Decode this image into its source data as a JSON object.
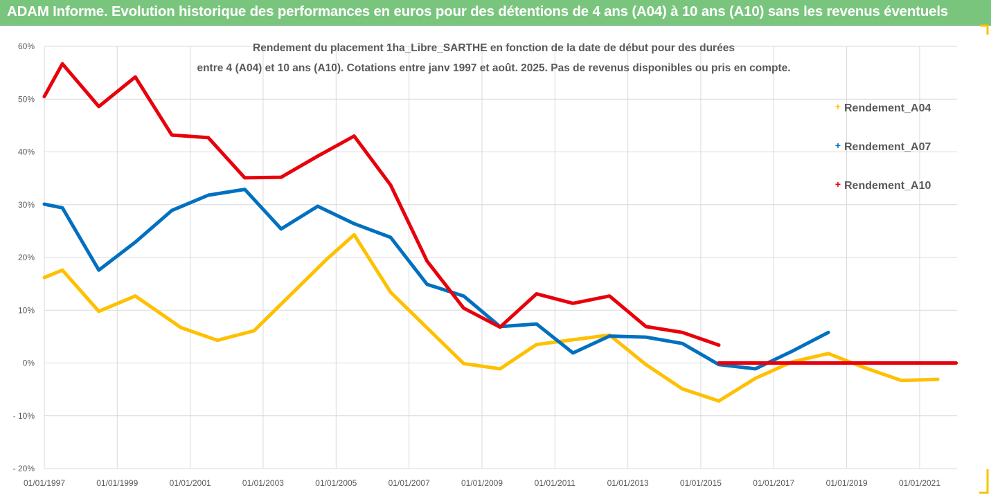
{
  "header": {
    "title": "ADAM Informe. Evolution historique des performances en euros pour des détentions de 4 ans (A04) à 10 ans (A10) sans les revenus éventuels"
  },
  "colors": {
    "header_bg": "#79c57d",
    "accent": "#f5c400"
  },
  "chart_data": {
    "type": "line",
    "title_lines": [
      "Rendement du placement 1ha_Libre_SARTHE en fonction de la date de début pour des durées",
      "entre 4 (A04) et 10 ans (A10). Cotations entre janv 1997 et août. 2025. Pas de revenus disponibles ou pris en compte."
    ],
    "xlabel": "",
    "ylabel": "",
    "x_axis": {
      "type": "date",
      "min": "1997-01-01",
      "max": "2022-01-01",
      "ticks": [
        "01/01/1997",
        "01/01/1999",
        "01/01/2001",
        "01/01/2003",
        "01/01/2005",
        "01/01/2007",
        "01/01/2009",
        "01/01/2011",
        "01/01/2013",
        "01/01/2015",
        "01/01/2017",
        "01/01/2019",
        "01/01/2021"
      ]
    },
    "y_axis": {
      "min": -0.2,
      "max": 0.6,
      "ticks": [
        {
          "value": 0.6,
          "label": "60%"
        },
        {
          "value": 0.5,
          "label": "50%"
        },
        {
          "value": 0.4,
          "label": "40%"
        },
        {
          "value": 0.3,
          "label": "30%"
        },
        {
          "value": 0.2,
          "label": "20%"
        },
        {
          "value": 0.1,
          "label": "10%"
        },
        {
          "value": 0.0,
          "label": "0%"
        },
        {
          "value": -0.1,
          "label": "- 10%"
        },
        {
          "value": -0.2,
          "label": "- 20%"
        }
      ]
    },
    "grid": true,
    "legend_position": "right",
    "series": [
      {
        "name": "Rendement_A04",
        "color": "#ffc000",
        "points": [
          [
            "1997-01-01",
            0.162
          ],
          [
            "1997-07-01",
            0.176
          ],
          [
            "1998-07-01",
            0.098
          ],
          [
            "1999-07-01",
            0.127
          ],
          [
            "2000-10-01",
            0.067
          ],
          [
            "2001-10-01",
            0.043
          ],
          [
            "2002-10-01",
            0.061
          ],
          [
            "2004-10-01",
            0.197
          ],
          [
            "2005-07-01",
            0.243
          ],
          [
            "2006-07-01",
            0.134
          ],
          [
            "2008-07-01",
            -0.001
          ],
          [
            "2009-07-01",
            -0.011
          ],
          [
            "2010-07-01",
            0.035
          ],
          [
            "2011-07-01",
            0.044
          ],
          [
            "2012-07-01",
            0.053
          ],
          [
            "2013-07-01",
            -0.003
          ],
          [
            "2014-07-01",
            -0.049
          ],
          [
            "2015-07-01",
            -0.072
          ],
          [
            "2016-07-01",
            -0.029
          ],
          [
            "2017-07-01",
            0.002
          ],
          [
            "2018-07-01",
            0.018
          ],
          [
            "2019-07-01",
            -0.009
          ],
          [
            "2020-07-01",
            -0.033
          ],
          [
            "2021-07-01",
            -0.031
          ]
        ]
      },
      {
        "name": "Rendement_A07",
        "color": "#0070c0",
        "points": [
          [
            "1997-01-01",
            0.301
          ],
          [
            "1997-07-01",
            0.294
          ],
          [
            "1998-07-01",
            0.176
          ],
          [
            "1999-07-01",
            0.229
          ],
          [
            "2000-07-01",
            0.289
          ],
          [
            "2001-07-01",
            0.318
          ],
          [
            "2002-07-01",
            0.329
          ],
          [
            "2003-07-01",
            0.254
          ],
          [
            "2004-07-01",
            0.297
          ],
          [
            "2005-07-01",
            0.264
          ],
          [
            "2006-07-01",
            0.238
          ],
          [
            "2007-07-01",
            0.149
          ],
          [
            "2008-07-01",
            0.127
          ],
          [
            "2009-07-01",
            0.069
          ],
          [
            "2010-07-01",
            0.074
          ],
          [
            "2011-07-01",
            0.019
          ],
          [
            "2012-07-01",
            0.051
          ],
          [
            "2013-07-01",
            0.049
          ],
          [
            "2014-07-01",
            0.037
          ],
          [
            "2015-07-01",
            -0.003
          ],
          [
            "2016-07-01",
            -0.011
          ],
          [
            "2017-07-01",
            0.022
          ],
          [
            "2018-07-01",
            0.058
          ]
        ]
      },
      {
        "name": "Rendement_A10",
        "color": "#e8000b",
        "points": [
          [
            "1997-01-01",
            0.505
          ],
          [
            "1997-07-01",
            0.567
          ],
          [
            "1998-07-01",
            0.486
          ],
          [
            "1999-07-01",
            0.542
          ],
          [
            "2000-07-01",
            0.432
          ],
          [
            "2001-07-01",
            0.427
          ],
          [
            "2002-07-01",
            0.351
          ],
          [
            "2003-07-01",
            0.352
          ],
          [
            "2004-07-01",
            0.392
          ],
          [
            "2005-07-01",
            0.43
          ],
          [
            "2006-07-01",
            0.337
          ],
          [
            "2007-07-01",
            0.193
          ],
          [
            "2008-07-01",
            0.104
          ],
          [
            "2009-07-01",
            0.068
          ],
          [
            "2010-07-01",
            0.131
          ],
          [
            "2011-07-01",
            0.113
          ],
          [
            "2012-07-01",
            0.127
          ],
          [
            "2013-07-01",
            0.069
          ],
          [
            "2014-07-01",
            0.058
          ],
          [
            "2015-07-01",
            0.034
          ]
        ]
      },
      {
        "color": "#e8000b",
        "points": [
          [
            "2015-07-01",
            0.0
          ],
          [
            "2022-01-01",
            0.0
          ]
        ]
      }
    ]
  }
}
